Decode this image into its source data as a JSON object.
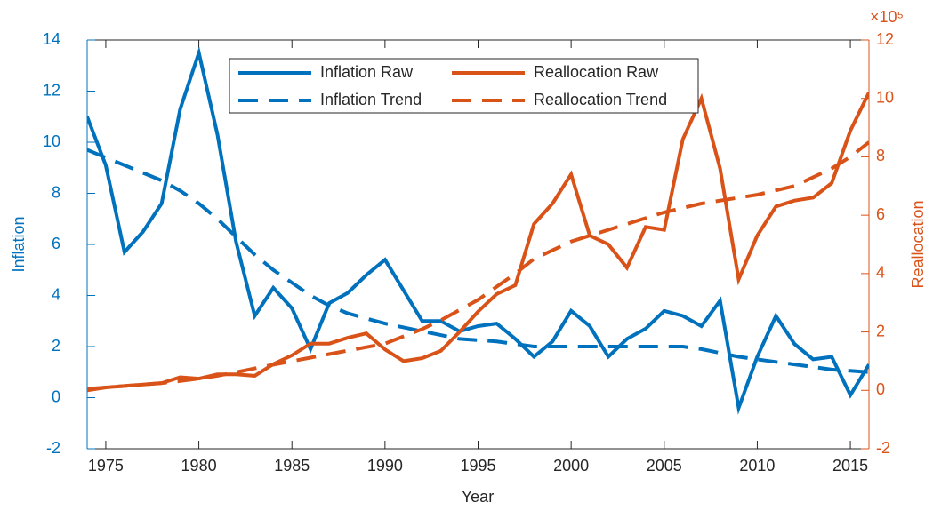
{
  "chart_data": {
    "type": "line",
    "x_label": "Year",
    "y_label": "Inflation",
    "y2_label": "Reallocation",
    "y2_multiplier": "×10⁵",
    "x": [
      1974,
      1975,
      1976,
      1977,
      1978,
      1979,
      1980,
      1981,
      1982,
      1983,
      1984,
      1985,
      1986,
      1987,
      1988,
      1989,
      1990,
      1991,
      1992,
      1993,
      1994,
      1995,
      1996,
      1997,
      1998,
      1999,
      2000,
      2001,
      2002,
      2003,
      2004,
      2005,
      2006,
      2007,
      2008,
      2009,
      2010,
      2011,
      2012,
      2013,
      2014,
      2015,
      2016
    ],
    "xlim": [
      1974,
      2016
    ],
    "xticks": [
      1975,
      1980,
      1985,
      1990,
      1995,
      2000,
      2005,
      2010,
      2015
    ],
    "ylim": [
      -2,
      14
    ],
    "yticks": [
      -2,
      0,
      2,
      4,
      6,
      8,
      10,
      12,
      14
    ],
    "y2lim": [
      -2,
      12
    ],
    "y2ticks": [
      -2,
      0,
      2,
      4,
      6,
      8,
      10,
      12
    ],
    "y_color": "#0072bd",
    "y2_color": "#d95319",
    "series": [
      {
        "name": "Inflation Raw",
        "color": "#0072bd",
        "line_style": "solid",
        "axis": "y",
        "values": [
          11.0,
          9.1,
          5.7,
          6.5,
          7.6,
          11.3,
          13.5,
          10.3,
          6.1,
          3.2,
          4.3,
          3.5,
          1.9,
          3.7,
          4.1,
          4.8,
          5.4,
          4.2,
          3.0,
          3.0,
          2.6,
          2.8,
          2.9,
          2.3,
          1.6,
          2.2,
          3.4,
          2.8,
          1.6,
          2.3,
          2.7,
          3.4,
          3.2,
          2.8,
          3.8,
          -0.4,
          1.6,
          3.2,
          2.1,
          1.5,
          1.6,
          0.1,
          1.3
        ]
      },
      {
        "name": "Reallocation Raw",
        "color": "#d95319",
        "line_style": "solid",
        "axis": "y2",
        "values": [
          0.0,
          0.1,
          0.15,
          0.2,
          0.25,
          0.45,
          0.4,
          0.55,
          0.55,
          0.5,
          0.9,
          1.2,
          1.6,
          1.6,
          1.8,
          1.95,
          1.4,
          1.0,
          1.1,
          1.35,
          2.0,
          2.7,
          3.3,
          3.6,
          5.7,
          6.4,
          7.4,
          5.3,
          5.0,
          4.2,
          5.6,
          5.5,
          8.6,
          10.0,
          7.6,
          3.8,
          5.3,
          6.3,
          6.5,
          6.6,
          7.1,
          8.9,
          10.2
        ]
      },
      {
        "name": "Inflation Trend",
        "color": "#0072bd",
        "line_style": "dashed",
        "axis": "y",
        "values": [
          9.7,
          9.4,
          9.1,
          8.8,
          8.5,
          8.1,
          7.6,
          7.0,
          6.3,
          5.6,
          5.0,
          4.5,
          4.0,
          3.6,
          3.3,
          3.1,
          2.9,
          2.75,
          2.6,
          2.45,
          2.3,
          2.25,
          2.2,
          2.1,
          2.0,
          2.0,
          2.0,
          2.0,
          2.0,
          2.0,
          2.0,
          2.0,
          2.0,
          1.9,
          1.75,
          1.6,
          1.5,
          1.4,
          1.3,
          1.2,
          1.1,
          1.05,
          1.0
        ]
      },
      {
        "name": "Reallocation Trend",
        "color": "#d95319",
        "line_style": "dashed",
        "axis": "y2",
        "values": [
          0.05,
          0.1,
          0.15,
          0.2,
          0.25,
          0.32,
          0.4,
          0.5,
          0.62,
          0.75,
          0.88,
          1.0,
          1.12,
          1.24,
          1.36,
          1.48,
          1.6,
          1.85,
          2.1,
          2.4,
          2.75,
          3.1,
          3.55,
          4.0,
          4.5,
          4.8,
          5.1,
          5.3,
          5.5,
          5.7,
          5.9,
          6.1,
          6.25,
          6.4,
          6.5,
          6.6,
          6.7,
          6.85,
          7.0,
          7.3,
          7.6,
          8.0,
          8.5
        ]
      }
    ],
    "legend": "top",
    "grid": false
  }
}
